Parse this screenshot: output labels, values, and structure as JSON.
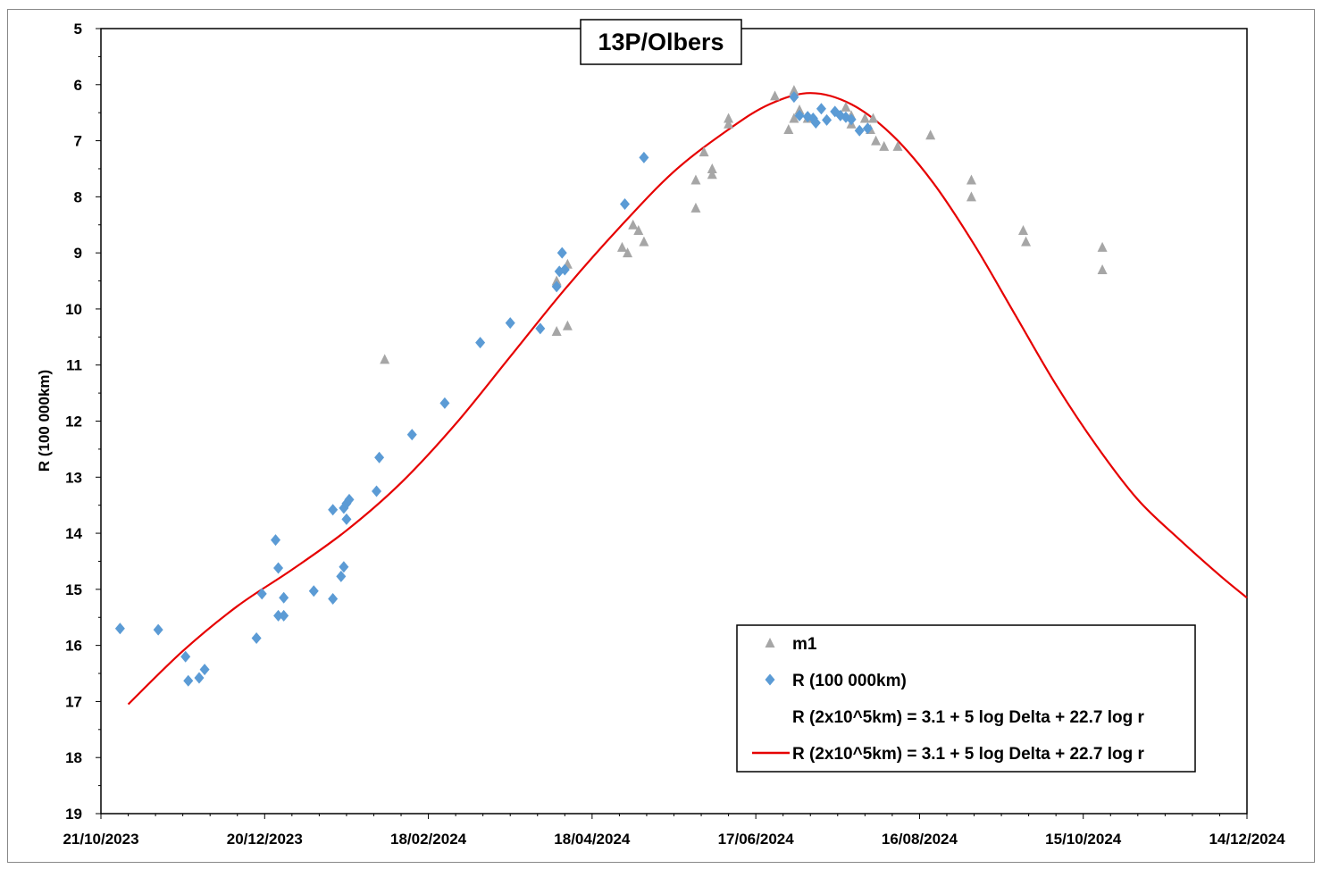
{
  "chart_data": {
    "type": "scatter",
    "title": "13P/Olbers",
    "xlabel": "",
    "ylabel": "R (100 000km)",
    "y_reversed": true,
    "ylim": [
      5,
      19
    ],
    "y_ticks": [
      5,
      6,
      7,
      8,
      9,
      10,
      11,
      12,
      13,
      14,
      15,
      16,
      17,
      18,
      19
    ],
    "xlim": [
      "2023-10-21",
      "2024-12-14"
    ],
    "x_ticks": [
      {
        "date": "2023-10-21",
        "label": "21/10/2023"
      },
      {
        "date": "2023-12-20",
        "label": "20/12/2023"
      },
      {
        "date": "2024-02-18",
        "label": "18/02/2024"
      },
      {
        "date": "2024-04-18",
        "label": "18/04/2024"
      },
      {
        "date": "2024-06-17",
        "label": "17/06/2024"
      },
      {
        "date": "2024-08-16",
        "label": "16/08/2024"
      },
      {
        "date": "2024-10-15",
        "label": "15/10/2024"
      },
      {
        "date": "2024-12-14",
        "label": "14/12/2024"
      }
    ],
    "legend_position": "bottom-right",
    "colors": {
      "m1": "#a6a6a6",
      "R": "#5b9bd5",
      "model": "#e60000"
    },
    "series": [
      {
        "name": "m1",
        "marker": "triangle",
        "points": [
          [
            "2024-02-02",
            10.9
          ],
          [
            "2024-04-05",
            9.5
          ],
          [
            "2024-04-05",
            10.4
          ],
          [
            "2024-04-09",
            9.2
          ],
          [
            "2024-04-09",
            10.3
          ],
          [
            "2024-04-29",
            8.9
          ],
          [
            "2024-05-01",
            9.0
          ],
          [
            "2024-05-03",
            8.5
          ],
          [
            "2024-05-05",
            8.6
          ],
          [
            "2024-05-07",
            8.8
          ],
          [
            "2024-05-26",
            7.7
          ],
          [
            "2024-05-26",
            8.2
          ],
          [
            "2024-05-29",
            7.2
          ],
          [
            "2024-06-01",
            7.5
          ],
          [
            "2024-06-01",
            7.6
          ],
          [
            "2024-06-07",
            6.6
          ],
          [
            "2024-06-07",
            6.7
          ],
          [
            "2024-06-24",
            6.2
          ],
          [
            "2024-06-29",
            6.8
          ],
          [
            "2024-07-01",
            6.6
          ],
          [
            "2024-07-01",
            6.1
          ],
          [
            "2024-07-03",
            6.45
          ],
          [
            "2024-07-06",
            6.6
          ],
          [
            "2024-07-20",
            6.4
          ],
          [
            "2024-07-22",
            6.55
          ],
          [
            "2024-07-22",
            6.7
          ],
          [
            "2024-07-27",
            6.6
          ],
          [
            "2024-07-29",
            6.8
          ],
          [
            "2024-07-30",
            6.6
          ],
          [
            "2024-07-31",
            7.0
          ],
          [
            "2024-08-03",
            7.1
          ],
          [
            "2024-08-08",
            7.1
          ],
          [
            "2024-08-20",
            6.9
          ],
          [
            "2024-09-04",
            7.7
          ],
          [
            "2024-09-04",
            8.0
          ],
          [
            "2024-09-23",
            8.6
          ],
          [
            "2024-09-24",
            8.8
          ],
          [
            "2024-10-22",
            8.9
          ],
          [
            "2024-10-22",
            9.3
          ]
        ]
      },
      {
        "name": "R (100 000km)",
        "marker": "diamond",
        "points": [
          [
            "2023-10-28",
            15.7
          ],
          [
            "2023-11-11",
            15.72
          ],
          [
            "2023-11-21",
            16.2
          ],
          [
            "2023-11-22",
            16.63
          ],
          [
            "2023-11-26",
            16.58
          ],
          [
            "2023-11-28",
            16.43
          ],
          [
            "2023-12-17",
            15.87
          ],
          [
            "2023-12-19",
            15.08
          ],
          [
            "2023-12-24",
            14.12
          ],
          [
            "2023-12-25",
            14.62
          ],
          [
            "2023-12-25",
            15.47
          ],
          [
            "2023-12-27",
            15.15
          ],
          [
            "2023-12-27",
            15.47
          ],
          [
            "2024-01-07",
            15.03
          ],
          [
            "2024-01-14",
            13.58
          ],
          [
            "2024-01-14",
            15.17
          ],
          [
            "2024-01-17",
            14.77
          ],
          [
            "2024-01-18",
            14.6
          ],
          [
            "2024-01-18",
            13.55
          ],
          [
            "2024-01-19",
            13.47
          ],
          [
            "2024-01-19",
            13.75
          ],
          [
            "2024-01-20",
            13.4
          ],
          [
            "2024-01-30",
            13.25
          ],
          [
            "2024-01-31",
            12.65
          ],
          [
            "2024-02-12",
            12.24
          ],
          [
            "2024-02-24",
            11.68
          ],
          [
            "2024-03-08",
            10.6
          ],
          [
            "2024-03-19",
            10.25
          ],
          [
            "2024-03-30",
            10.35
          ],
          [
            "2024-04-05",
            9.6
          ],
          [
            "2024-04-06",
            9.33
          ],
          [
            "2024-04-07",
            9.0
          ],
          [
            "2024-04-08",
            9.3
          ],
          [
            "2024-04-30",
            8.13
          ],
          [
            "2024-05-07",
            7.3
          ],
          [
            "2024-07-01",
            6.22
          ],
          [
            "2024-07-03",
            6.55
          ],
          [
            "2024-07-06",
            6.57
          ],
          [
            "2024-07-08",
            6.6
          ],
          [
            "2024-07-09",
            6.68
          ],
          [
            "2024-07-11",
            6.43
          ],
          [
            "2024-07-13",
            6.63
          ],
          [
            "2024-07-16",
            6.48
          ],
          [
            "2024-07-18",
            6.55
          ],
          [
            "2024-07-20",
            6.58
          ],
          [
            "2024-07-22",
            6.62
          ],
          [
            "2024-07-25",
            6.82
          ],
          [
            "2024-07-28",
            6.78
          ]
        ]
      },
      {
        "name": "R (2x10^5km) = 3.1 + 5 log Delta + 22.7 log r",
        "marker": "none",
        "legend_only": true
      },
      {
        "name": "R (2x10^5km) = 3.1 + 5 log Delta + 22.7 log r",
        "marker": "line",
        "points": [
          [
            "2023-10-31",
            17.05
          ],
          [
            "2023-11-20",
            16.1
          ],
          [
            "2023-12-10",
            15.3
          ],
          [
            "2023-12-30",
            14.65
          ],
          [
            "2024-01-19",
            13.95
          ],
          [
            "2024-02-08",
            13.1
          ],
          [
            "2024-02-28",
            12.05
          ],
          [
            "2024-03-19",
            10.85
          ],
          [
            "2024-04-08",
            9.65
          ],
          [
            "2024-04-28",
            8.55
          ],
          [
            "2024-05-18",
            7.55
          ],
          [
            "2024-06-07",
            6.8
          ],
          [
            "2024-06-22",
            6.35
          ],
          [
            "2024-07-07",
            6.15
          ],
          [
            "2024-07-22",
            6.35
          ],
          [
            "2024-08-06",
            6.9
          ],
          [
            "2024-08-21",
            7.75
          ],
          [
            "2024-09-05",
            8.85
          ],
          [
            "2024-09-20",
            10.1
          ],
          [
            "2024-10-05",
            11.35
          ],
          [
            "2024-10-20",
            12.45
          ],
          [
            "2024-11-04",
            13.4
          ],
          [
            "2024-11-19",
            14.1
          ],
          [
            "2024-12-04",
            14.75
          ],
          [
            "2024-12-14",
            15.15
          ]
        ]
      }
    ]
  }
}
